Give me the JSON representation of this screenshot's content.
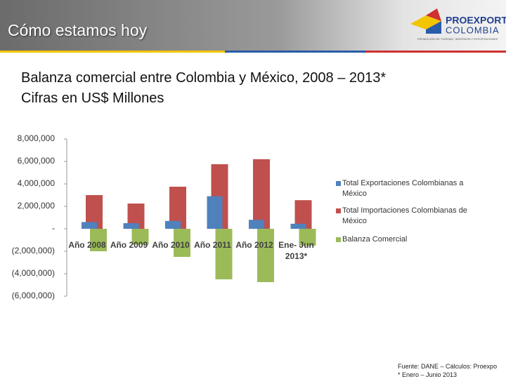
{
  "header": {
    "title": "Cómo estamos hoy",
    "logo": {
      "name": "PROEXPORT",
      "country": "COLOMBIA",
      "tagline": "PROMOCIÓN DE TURISMO, INVERSIÓN Y EXPORTACIONES"
    }
  },
  "chart_data": {
    "type": "bar",
    "title": "Balanza comercial entre Colombia y México, 2008 – 2013*",
    "subtitle": "Cifras en US$ Millones",
    "categories": [
      "Año 2008",
      "Año 2009",
      "Año 2010",
      "Año 2011",
      "Año 2012",
      "Ene- Jun 2013*"
    ],
    "series": [
      {
        "name": "Total Exportaciones Colombianas a México",
        "color": "#4f81bd",
        "values": [
          600000,
          500000,
          700000,
          2900000,
          800000,
          450000
        ]
      },
      {
        "name": "Total Importaciones Colombianas de México",
        "color": "#c0504d",
        "values": [
          3000000,
          2250000,
          3750000,
          5750000,
          6200000,
          2550000
        ]
      },
      {
        "name": "Balanza Comercial",
        "color": "#9bbb59",
        "values": [
          -2000000,
          -1400000,
          -2500000,
          -4500000,
          -4750000,
          -1500000
        ]
      }
    ],
    "ylim": [
      -6000000,
      8000000
    ],
    "yticks": [
      {
        "value": 8000000,
        "label": "8,000,000"
      },
      {
        "value": 6000000,
        "label": "6,000,000"
      },
      {
        "value": 4000000,
        "label": "4,000,000"
      },
      {
        "value": 2000000,
        "label": "2,000,000"
      },
      {
        "value": 0,
        "label": "-"
      },
      {
        "value": -2000000,
        "label": "(2,000,000)"
      },
      {
        "value": -4000000,
        "label": "(4,000,000)"
      },
      {
        "value": -6000000,
        "label": "(6,000,000)"
      }
    ],
    "legend": "right"
  },
  "notes": [
    "Fuente: DANE – Cálculos: Proexpo",
    "* Enero – Junio 2013"
  ]
}
